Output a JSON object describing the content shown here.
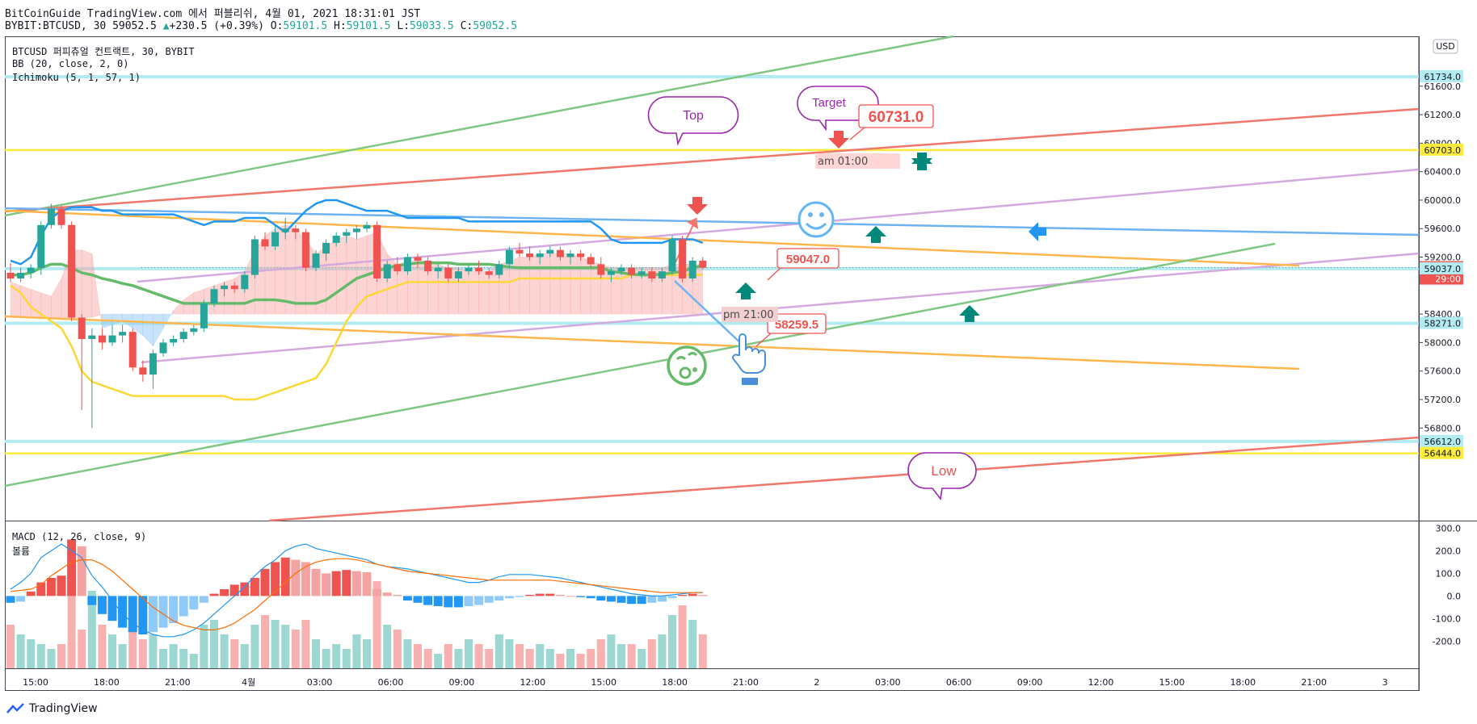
{
  "header": {
    "line1": "BitCoinGuide TradingView.com 에서 퍼블리쉬, 4월 01, 2021 18:31:01 JST",
    "symbol": "BYBIT:BTCUSD, 30",
    "last": "59052.5",
    "change": "+230.5 (+0.39%)",
    "o_label": "O:",
    "o": "59101.5",
    "h_label": "H:",
    "h": "59101.5",
    "l_label": "L:",
    "l": "59033.5",
    "c_label": "C:",
    "c": "59052.5"
  },
  "legend": {
    "title": "BTCUSD 퍼피츄얼 컨트랙트, 30, BYBIT",
    "bb": "BB (20, close, 2, 0)",
    "ichimoku": "Ichimoku (5, 1, 57, 1)",
    "macd": "MACD (12, 26, close, 9)",
    "volume": "볼륨"
  },
  "currency": "USD",
  "footer": {
    "brand": "TradingView"
  },
  "colors": {
    "up": "#26a69a",
    "down": "#ef5350",
    "price_line_yellow": "#ffeb3b",
    "trend_red": "#f0776b",
    "trend_green": "#81c784",
    "trend_violet": "#d3a9e0",
    "trend_orange": "#ffb74d",
    "trend_blue": "#6db3f2",
    "bb_mid": "#66bb6a",
    "bb_upper": "#2196f3",
    "bb_lower": "#fdd835",
    "macd_line": "#2196f3",
    "signal_line": "#ff6d00"
  },
  "chart_data": {
    "type": "candlestick",
    "ylim": [
      55500,
      62300
    ],
    "y_ticks": [
      56800,
      57200,
      57600,
      58000,
      58400,
      59200,
      59600,
      60000,
      60400,
      60800,
      61200,
      61600
    ],
    "y_tick_labels": [
      "56800.0",
      "57200.0",
      "57600.0",
      "58000.0",
      "58400.0",
      "59200.0",
      "59600.0",
      "60000.0",
      "60400.0",
      "60800.0",
      "61200.0",
      "61600.0"
    ],
    "x_tick_labels": [
      "15:00",
      "18:00",
      "21:00",
      "4월",
      "03:00",
      "06:00",
      "09:00",
      "12:00",
      "15:00",
      "18:00",
      "21:00",
      "2",
      "03:00",
      "06:00",
      "09:00",
      "12:00",
      "15:00",
      "18:00",
      "21:00",
      "3"
    ],
    "price_badges": [
      {
        "label": "61734.0",
        "value": 61734.0,
        "style": "cyan"
      },
      {
        "label": "60703.0",
        "value": 60703.0,
        "style": "yellow"
      },
      {
        "label": "59052.5",
        "value": 59052.5,
        "style": "red"
      },
      {
        "label": "29:00",
        "value": null,
        "style": "red-sub"
      },
      {
        "label": "59037.0",
        "value": 59037.0,
        "style": "cyan"
      },
      {
        "label": "58271.0",
        "value": 58271.0,
        "style": "cyan"
      },
      {
        "label": "56612.0",
        "value": 56612.0,
        "style": "cyan"
      },
      {
        "label": "56444.0",
        "value": 56444.0,
        "style": "yellow"
      }
    ],
    "candles": [
      [
        58980,
        59120,
        58850,
        58900
      ],
      [
        58900,
        59050,
        58850,
        58980
      ],
      [
        58980,
        59100,
        58900,
        59050
      ],
      [
        59050,
        59700,
        58950,
        59650
      ],
      [
        59650,
        59950,
        59600,
        59880
      ],
      [
        59880,
        59920,
        59600,
        59650
      ],
      [
        59650,
        59700,
        58300,
        58350
      ],
      [
        58350,
        58400,
        57050,
        58050
      ],
      [
        58050,
        58200,
        56800,
        58100
      ],
      [
        58100,
        58200,
        57900,
        58000
      ],
      [
        58000,
        58250,
        57950,
        58100
      ],
      [
        58100,
        58250,
        58000,
        58150
      ],
      [
        58150,
        58200,
        57600,
        57650
      ],
      [
        57650,
        57750,
        57450,
        57550
      ],
      [
        57550,
        57900,
        57350,
        57850
      ],
      [
        57850,
        58050,
        57800,
        58000
      ],
      [
        58000,
        58100,
        57950,
        58050
      ],
      [
        58050,
        58200,
        58000,
        58150
      ],
      [
        58150,
        58250,
        58100,
        58200
      ],
      [
        58200,
        58600,
        58150,
        58550
      ],
      [
        58550,
        58800,
        58500,
        58750
      ],
      [
        58750,
        58850,
        58650,
        58800
      ],
      [
        58800,
        58850,
        58700,
        58750
      ],
      [
        58750,
        59000,
        58700,
        58950
      ],
      [
        58950,
        59500,
        58900,
        59450
      ],
      [
        59450,
        59550,
        59300,
        59350
      ],
      [
        59350,
        59650,
        59300,
        59550
      ],
      [
        59550,
        59750,
        59450,
        59600
      ],
      [
        59600,
        59650,
        59450,
        59550
      ],
      [
        59550,
        59600,
        59000,
        59050
      ],
      [
        59050,
        59300,
        59000,
        59250
      ],
      [
        59250,
        59450,
        59150,
        59400
      ],
      [
        59400,
        59550,
        59350,
        59500
      ],
      [
        59500,
        59600,
        59400,
        59550
      ],
      [
        59550,
        59650,
        59450,
        59600
      ],
      [
        59600,
        59700,
        59550,
        59650
      ],
      [
        59650,
        59700,
        58850,
        58900
      ],
      [
        58900,
        59150,
        58850,
        59100
      ],
      [
        59100,
        59200,
        58950,
        59000
      ],
      [
        59000,
        59250,
        58950,
        59200
      ],
      [
        59200,
        59250,
        59050,
        59150
      ],
      [
        59150,
        59200,
        58950,
        59000
      ],
      [
        59000,
        59100,
        58900,
        59050
      ],
      [
        59050,
        59100,
        58850,
        58900
      ],
      [
        58900,
        59050,
        58850,
        59000
      ],
      [
        59000,
        59100,
        58950,
        59050
      ],
      [
        59050,
        59150,
        58950,
        59000
      ],
      [
        59000,
        59050,
        58900,
        58950
      ],
      [
        58950,
        59150,
        58900,
        59100
      ],
      [
        59100,
        59350,
        59050,
        59300
      ],
      [
        59300,
        59400,
        59200,
        59250
      ],
      [
        59250,
        59350,
        59150,
        59200
      ],
      [
        59200,
        59300,
        59100,
        59250
      ],
      [
        59250,
        59350,
        59200,
        59300
      ],
      [
        59300,
        59350,
        59150,
        59200
      ],
      [
        59200,
        59300,
        59100,
        59250
      ],
      [
        59250,
        59300,
        59150,
        59200
      ],
      [
        59200,
        59250,
        59050,
        59100
      ],
      [
        59100,
        59200,
        58900,
        58950
      ],
      [
        58950,
        59050,
        58850,
        59000
      ],
      [
        59000,
        59100,
        58950,
        59050
      ],
      [
        59050,
        59100,
        58900,
        58950
      ],
      [
        58950,
        59050,
        58900,
        59000
      ],
      [
        59000,
        59050,
        58850,
        58900
      ],
      [
        58900,
        59050,
        58850,
        59000
      ],
      [
        59000,
        59500,
        58950,
        59450
      ],
      [
        59450,
        59500,
        58850,
        58900
      ],
      [
        58900,
        59200,
        58850,
        59150
      ],
      [
        59150,
        59200,
        59030,
        59052
      ]
    ],
    "ichimoku_span_a": [
      58850,
      58800,
      58750,
      58700,
      58650,
      58900,
      59300,
      59300,
      59250,
      58200,
      58250,
      58300,
      58200,
      58100,
      57950,
      58200,
      58450,
      58600,
      58700,
      58750,
      58800,
      58850,
      58900,
      59000,
      59300,
      59500,
      59600,
      59650,
      59600,
      59450,
      59250,
      59350,
      59450,
      59500,
      59450,
      59500,
      59550,
      59250,
      59100,
      59150,
      59150,
      59150,
      59100,
      59050,
      59050,
      59000,
      59000,
      59000,
      59100,
      59150,
      59200,
      59200,
      59250,
      59250,
      59250,
      59250,
      59200,
      59150,
      59100,
      59050,
      59050,
      59050,
      59050,
      59050,
      59050,
      59100,
      59100,
      59100,
      59100
    ],
    "ichimoku_span_b": [
      58350,
      58350,
      58350,
      58350,
      58350,
      58350,
      58350,
      58350,
      58350,
      58400,
      58400,
      58400,
      58400,
      58400,
      58400,
      58400,
      58400,
      58400,
      58400,
      58400,
      58400,
      58400,
      58400,
      58400,
      58400,
      58400,
      58400,
      58400,
      58400,
      58400,
      58400,
      58400,
      58400,
      58400,
      58400,
      58400,
      58400,
      58400,
      58400,
      58400,
      58400,
      58400,
      58400,
      58400,
      58400,
      58400,
      58400,
      58400,
      58400,
      58400,
      58400,
      58400,
      58400,
      58400,
      58400,
      58400,
      58400,
      58400,
      58400,
      58400,
      58400,
      58400,
      58400,
      58400,
      58400,
      58400,
      58400,
      58400,
      58400
    ],
    "bb_upper": [
      59150,
      59100,
      59200,
      59500,
      59750,
      59850,
      59900,
      59900,
      59900,
      59850,
      59850,
      59800,
      59800,
      59800,
      59800,
      59800,
      59800,
      59750,
      59700,
      59650,
      59700,
      59700,
      59700,
      59750,
      59750,
      59750,
      59650,
      59550,
      59700,
      59850,
      59950,
      60000,
      60000,
      59950,
      59900,
      59850,
      59850,
      59850,
      59800,
      59750,
      59750,
      59750,
      59750,
      59750,
      59750,
      59700,
      59700,
      59700,
      59700,
      59700,
      59700,
      59700,
      59700,
      59700,
      59700,
      59700,
      59700,
      59700,
      59600,
      59450,
      59400,
      59400,
      59400,
      59400,
      59400,
      59450,
      59450,
      59450,
      59400
    ],
    "bb_mid": [
      58950,
      58950,
      58980,
      59050,
      59100,
      59100,
      59050,
      58980,
      58950,
      58900,
      58870,
      58830,
      58800,
      58750,
      58700,
      58650,
      58600,
      58550,
      58550,
      58550,
      58550,
      58550,
      58550,
      58550,
      58600,
      58600,
      58600,
      58580,
      58550,
      58550,
      58550,
      58600,
      58700,
      58800,
      58900,
      58950,
      59000,
      59050,
      59080,
      59100,
      59120,
      59120,
      59120,
      59120,
      59100,
      59100,
      59100,
      59100,
      59080,
      59060,
      59050,
      59050,
      59050,
      59050,
      59050,
      59050,
      59050,
      59050,
      59050,
      59000,
      58980,
      58960,
      58950,
      58950,
      58960,
      58980,
      59000,
      59050,
      59080
    ],
    "bb_lower": [
      58800,
      58700,
      58500,
      58400,
      58300,
      58200,
      57950,
      57600,
      57450,
      57400,
      57350,
      57300,
      57250,
      57250,
      57250,
      57250,
      57250,
      57250,
      57250,
      57250,
      57250,
      57250,
      57200,
      57200,
      57200,
      57250,
      57300,
      57350,
      57400,
      57450,
      57500,
      57700,
      58000,
      58300,
      58500,
      58650,
      58700,
      58750,
      58800,
      58850,
      58850,
      58850,
      58850,
      58850,
      58850,
      58850,
      58850,
      58850,
      58850,
      58850,
      58900,
      58900,
      58900,
      58900,
      58900,
      58900,
      58900,
      58900,
      58900,
      58900,
      58900,
      58950,
      58950,
      58950,
      58950,
      58950,
      58950,
      58950,
      58950
    ],
    "annotations": [
      {
        "text": "60731.0",
        "value": 60731.0
      },
      {
        "text": "59047.0",
        "value": 59047.0
      },
      {
        "text": "58259.5",
        "value": 58259.5
      },
      {
        "text": "am 01:00"
      },
      {
        "text": "pm 21:00"
      },
      {
        "text": "Top"
      },
      {
        "text": "Target"
      },
      {
        "text": "Low"
      }
    ],
    "macd": {
      "title": "MACD (12, 26, close, 9)",
      "ylim": [
        -320,
        330
      ],
      "y_ticks": [
        300,
        200,
        100,
        0,
        -100,
        -200
      ],
      "y_tick_labels": [
        "300.0",
        "200.0",
        "100.0",
        "0.0",
        "-100.0",
        "-200.0"
      ],
      "histogram": [
        -30,
        -25,
        20,
        60,
        80,
        90,
        250,
        220,
        -40,
        -80,
        -110,
        -140,
        -160,
        -170,
        -160,
        -140,
        -120,
        -90,
        -60,
        -30,
        10,
        30,
        50,
        60,
        80,
        120,
        150,
        170,
        160,
        150,
        120,
        100,
        110,
        115,
        110,
        105,
        30,
        15,
        5,
        -20,
        -30,
        -40,
        -45,
        -50,
        -50,
        -45,
        -40,
        -30,
        -20,
        -10,
        -5,
        5,
        10,
        10,
        5,
        0,
        -5,
        -10,
        -20,
        -25,
        -30,
        -35,
        -35,
        -30,
        -25,
        -10,
        5,
        10,
        5
      ],
      "macd_line": [
        30,
        60,
        100,
        170,
        200,
        230,
        200,
        170,
        90,
        40,
        -20,
        -80,
        -120,
        -150,
        -170,
        -180,
        -180,
        -170,
        -150,
        -120,
        -80,
        -40,
        0,
        40,
        90,
        130,
        160,
        200,
        220,
        230,
        210,
        200,
        190,
        180,
        170,
        160,
        140,
        130,
        125,
        120,
        110,
        100,
        90,
        80,
        70,
        60,
        60,
        70,
        85,
        95,
        95,
        95,
        90,
        85,
        80,
        70,
        60,
        50,
        40,
        30,
        20,
        10,
        5,
        0,
        0,
        5,
        10,
        15,
        15
      ],
      "signal_line": [
        20,
        25,
        30,
        50,
        90,
        120,
        150,
        160,
        160,
        140,
        110,
        70,
        30,
        -10,
        -50,
        -80,
        -110,
        -130,
        -140,
        -150,
        -150,
        -140,
        -120,
        -90,
        -60,
        -20,
        20,
        60,
        100,
        130,
        150,
        160,
        165,
        165,
        160,
        150,
        140,
        130,
        120,
        110,
        105,
        100,
        95,
        90,
        85,
        80,
        75,
        70,
        70,
        70,
        70,
        70,
        70,
        70,
        65,
        60,
        55,
        50,
        45,
        40,
        35,
        30,
        25,
        20,
        15,
        15,
        15,
        15,
        15
      ],
      "volume": [
        0.45,
        0.35,
        0.3,
        0.25,
        0.2,
        0.25,
        0.95,
        0.4,
        0.8,
        0.45,
        0.35,
        0.25,
        0.4,
        0.3,
        0.35,
        0.2,
        0.25,
        0.2,
        0.15,
        0.45,
        0.5,
        0.35,
        0.3,
        0.25,
        0.45,
        0.55,
        0.5,
        0.45,
        0.4,
        0.5,
        0.3,
        0.2,
        0.25,
        0.2,
        0.35,
        0.3,
        0.9,
        0.45,
        0.4,
        0.3,
        0.25,
        0.2,
        0.15,
        0.25,
        0.2,
        0.3,
        0.25,
        0.2,
        0.35,
        0.3,
        0.25,
        0.2,
        0.25,
        0.2,
        0.15,
        0.2,
        0.15,
        0.2,
        0.3,
        0.35,
        0.25,
        0.25,
        0.2,
        0.3,
        0.35,
        0.55,
        0.65,
        0.5,
        0.35
      ]
    }
  }
}
